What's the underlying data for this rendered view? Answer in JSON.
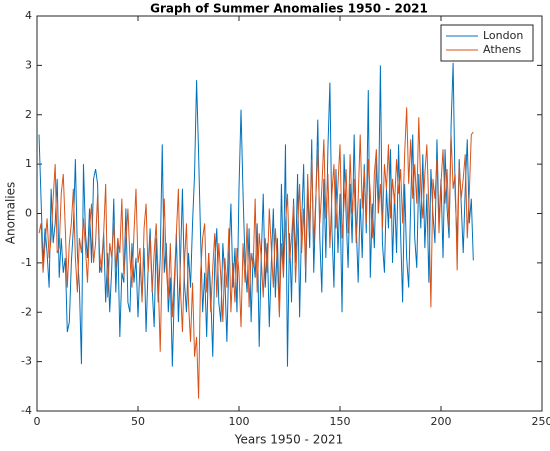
{
  "chart_data": {
    "type": "line",
    "title": "Graph of Summer Anomalies 1950 - 2021",
    "xlabel": "Years 1950 - 2021",
    "ylabel": "Anomalies",
    "x": [
      1,
      2,
      3,
      4,
      5,
      6,
      7,
      8,
      9,
      10,
      11,
      12,
      13,
      14,
      15,
      16,
      17,
      18,
      19,
      20,
      21,
      22,
      23,
      24,
      25,
      26,
      27,
      28,
      29,
      30,
      31,
      32,
      33,
      34,
      35,
      36,
      37,
      38,
      39,
      40,
      41,
      42,
      43,
      44,
      45,
      46,
      47,
      48,
      49,
      50,
      51,
      52,
      53,
      54,
      55,
      56,
      57,
      58,
      59,
      60,
      61,
      62,
      63,
      64,
      65,
      66,
      67,
      68,
      69,
      70,
      71,
      72,
      73,
      74,
      75,
      76,
      77,
      78,
      79,
      80,
      81,
      82,
      83,
      84,
      85,
      86,
      87,
      88,
      89,
      90,
      91,
      92,
      93,
      94,
      95,
      96,
      97,
      98,
      99,
      100,
      101,
      102,
      103,
      104,
      105,
      106,
      107,
      108,
      109,
      110,
      111,
      112,
      113,
      114,
      115,
      116,
      117,
      118,
      119,
      120,
      121,
      122,
      123,
      124,
      125,
      126,
      127,
      128,
      129,
      130,
      131,
      132,
      133,
      134,
      135,
      136,
      137,
      138,
      139,
      140,
      141,
      142,
      143,
      144,
      145,
      146,
      147,
      148,
      149,
      150,
      151,
      152,
      153,
      154,
      155,
      156,
      157,
      158,
      159,
      160,
      161,
      162,
      163,
      164,
      165,
      166,
      167,
      168,
      169,
      170,
      171,
      172,
      173,
      174,
      175,
      176,
      177,
      178,
      179,
      180,
      181,
      182,
      183,
      184,
      185,
      186,
      187,
      188,
      189,
      190,
      191,
      192,
      193,
      194,
      195,
      196,
      197,
      198,
      199,
      200,
      201,
      202,
      203,
      204,
      205,
      206,
      207,
      208,
      209,
      210,
      211,
      212,
      213,
      214,
      215,
      216
    ],
    "series": [
      {
        "name": "London",
        "color": "#0072BD",
        "values": [
          1.6,
          0.3,
          -1.0,
          -0.3,
          -0.8,
          -1.5,
          0.5,
          -0.6,
          -0.2,
          0.7,
          -1.3,
          -0.5,
          -1.2,
          -0.9,
          -2.4,
          -2.2,
          -1.0,
          -0.3,
          1.1,
          -0.8,
          -1.5,
          -3.05,
          1.0,
          -0.4,
          -0.9,
          0.1,
          -1.0,
          0.7,
          0.9,
          0.6,
          -1.2,
          -1.0,
          -0.4,
          -1.8,
          -0.8,
          -2.0,
          -1.1,
          0.3,
          -1.6,
          -0.5,
          -2.5,
          -1.2,
          -1.4,
          0.1,
          -1.8,
          -2.0,
          -0.6,
          -1.4,
          -0.9,
          -2.1,
          -1.0,
          -1.7,
          -0.7,
          -2.4,
          -1.1,
          -0.3,
          -1.5,
          -2.3,
          -0.5,
          -1.8,
          -0.9,
          1.4,
          -1.2,
          -0.6,
          -2.0,
          -1.3,
          -3.1,
          -1.6,
          -0.4,
          -2.2,
          -1.0,
          0.5,
          -1.4,
          -2.0,
          -0.8,
          -1.5,
          -0.2,
          0.8,
          2.7,
          1.2,
          -0.5,
          -2.0,
          -1.2,
          -2.5,
          -0.8,
          -1.6,
          -2.9,
          -1.0,
          -0.3,
          -1.8,
          -2.2,
          -0.6,
          -1.3,
          -2.6,
          -0.9,
          0.2,
          -1.5,
          -0.7,
          -2.0,
          0.5,
          2.1,
          0.4,
          -1.0,
          -1.6,
          -0.3,
          -2.2,
          -0.8,
          -1.3,
          -0.2,
          -2.7,
          -0.9,
          0.4,
          -1.5,
          -0.6,
          -2.3,
          -1.0,
          0.1,
          -1.7,
          -0.5,
          -2.0,
          0.6,
          -1.2,
          1.4,
          -3.1,
          -0.4,
          -1.8,
          0.3,
          -1.0,
          0.8,
          -2.1,
          -0.2,
          1.0,
          -1.4,
          0.5,
          -0.7,
          1.5,
          -1.2,
          0.2,
          1.9,
          -0.5,
          -1.6,
          0.7,
          -0.9,
          1.3,
          2.65,
          -0.3,
          -1.5,
          0.9,
          -0.8,
          0.4,
          -2.0,
          1.2,
          0.0,
          -1.1,
          0.6,
          -0.6,
          1.6,
          -0.2,
          -1.4,
          0.3,
          -0.9,
          1.0,
          -0.4,
          2.5,
          -1.3,
          0.2,
          -0.7,
          1.1,
          0.0,
          3.0,
          -0.6,
          -1.2,
          0.5,
          -0.3,
          1.3,
          -1.0,
          0.4,
          -0.8,
          1.4,
          -0.4,
          -1.8,
          0.6,
          -0.9,
          -1.5,
          0.2,
          1.6,
          -0.5,
          -1.1,
          0.8,
          -0.3,
          1.2,
          -0.7,
          0.4,
          -1.4,
          0.9,
          0.0,
          -0.6,
          1.5,
          -0.2,
          0.7,
          -0.9,
          1.3,
          0.1,
          -0.5,
          1.8,
          3.05,
          0.4,
          -0.6,
          1.1,
          0.2,
          -0.8,
          0.5,
          1.5,
          -0.2,
          0.3,
          -0.95
        ]
      },
      {
        "name": "Athens",
        "color": "#D95319",
        "values": [
          -0.4,
          -0.2,
          -1.2,
          -0.6,
          -0.1,
          -0.9,
          -0.5,
          0.3,
          1.0,
          -0.8,
          -0.7,
          0.4,
          0.8,
          -0.3,
          -1.5,
          -0.6,
          -0.2,
          0.5,
          -0.9,
          -1.6,
          -0.5,
          -0.8,
          -0.1,
          -0.7,
          -1.4,
          -0.3,
          0.2,
          -1.0,
          -0.6,
          0.4,
          -0.8,
          -1.2,
          -0.4,
          0.6,
          -1.7,
          -0.6,
          -0.9,
          -0.2,
          -1.1,
          -0.5,
          -0.8,
          0.3,
          -1.3,
          -0.6,
          0.1,
          -0.9,
          -1.5,
          -0.4,
          0.5,
          -1.0,
          -0.7,
          -1.8,
          -0.3,
          0.2,
          -1.2,
          -0.5,
          -1.6,
          -0.8,
          -0.2,
          -1.3,
          -2.8,
          -0.9,
          0.3,
          -1.1,
          -1.7,
          -0.6,
          -2.1,
          -1.3,
          -0.4,
          0.5,
          -1.5,
          -2.4,
          -1.0,
          -0.2,
          -1.8,
          -2.6,
          -1.4,
          -2.9,
          -2.5,
          -3.75,
          -1.2,
          -0.5,
          -0.2,
          -1.6,
          -0.8,
          -2.0,
          -1.1,
          -0.4,
          -1.7,
          -0.6,
          -1.3,
          -2.2,
          -0.9,
          -1.5,
          -0.3,
          -2.0,
          -1.0,
          -1.8,
          -0.7,
          -1.2,
          -2.3,
          -0.6,
          -1.4,
          -0.2,
          -1.9,
          -0.8,
          -1.1,
          0.3,
          -1.6,
          -0.4,
          -0.9,
          -1.7,
          -0.5,
          -1.2,
          0.1,
          -0.7,
          -1.5,
          -0.3,
          -1.0,
          -2.1,
          -0.6,
          -1.3,
          -0.2,
          0.4,
          -1.0,
          -0.5,
          0.2,
          -1.4,
          -0.3,
          0.6,
          -0.8,
          0.1,
          -1.2,
          0.8,
          -0.4,
          1.1,
          -0.6,
          0.3,
          1.3,
          -0.2,
          0.5,
          1.5,
          -0.1,
          0.8,
          -0.7,
          0.4,
          1.0,
          -0.3,
          0.6,
          1.4,
          -0.5,
          0.2,
          0.9,
          -0.4,
          1.2,
          0.0,
          0.7,
          -0.6,
          0.3,
          1.6,
          0.1,
          0.9,
          -0.2,
          1.1,
          0.4,
          -0.5,
          0.8,
          1.3,
          0.0,
          0.6,
          -0.3,
          1.0,
          0.5,
          1.4,
          -0.1,
          0.7,
          0.2,
          1.1,
          0.4,
          0.9,
          -0.2,
          1.2,
          2.15,
          0.6,
          1.5,
          0.3,
          1.0,
          0.2,
          1.95,
          0.5,
          -0.1,
          0.8,
          1.4,
          0.1,
          -1.9,
          0.7,
          0.3,
          1.1,
          -0.4,
          0.6,
          1.3,
          0.2,
          0.9,
          -0.3,
          1.6,
          0.5,
          0.8,
          -1.15,
          1.0,
          0.3,
          0.7,
          1.2,
          -0.5,
          0.4,
          1.6,
          1.65
        ]
      }
    ],
    "xlim": [
      0,
      250
    ],
    "xticks": [
      0,
      50,
      100,
      150,
      200,
      250
    ],
    "ylim": [
      -4,
      4
    ],
    "yticks": [
      -4,
      -3,
      -2,
      -1,
      0,
      1,
      2,
      3,
      4
    ],
    "legend": "northeast"
  }
}
